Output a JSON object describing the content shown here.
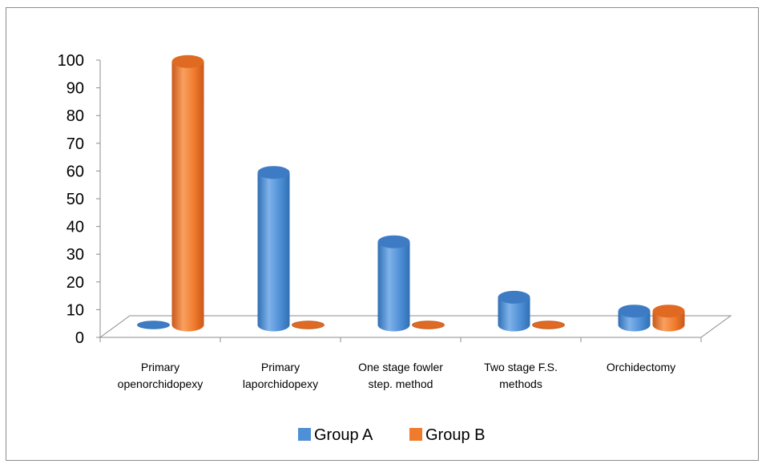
{
  "chart_data": {
    "type": "bar",
    "style": "3d-cylinder",
    "categories": [
      [
        "Primary",
        "openorchidopexy"
      ],
      [
        "Primary",
        "laporchidopexy"
      ],
      [
        "One stage fowler",
        "step. method"
      ],
      [
        "Two stage F.S.",
        "methods"
      ],
      [
        "Orchidectomy"
      ]
    ],
    "series": [
      {
        "name": "Group A",
        "color": "#4f8fd6",
        "values": [
          0,
          55,
          30,
          10,
          5
        ]
      },
      {
        "name": "Group B",
        "color": "#f07b2c",
        "values": [
          95,
          0,
          0,
          0,
          5
        ]
      }
    ],
    "y_ticks": [
      "0",
      "10",
      "20",
      "30",
      "40",
      "50",
      "60",
      "70",
      "80",
      "90",
      "100"
    ],
    "ylim": [
      0,
      100
    ],
    "grid": false,
    "legend_position": "bottom"
  }
}
